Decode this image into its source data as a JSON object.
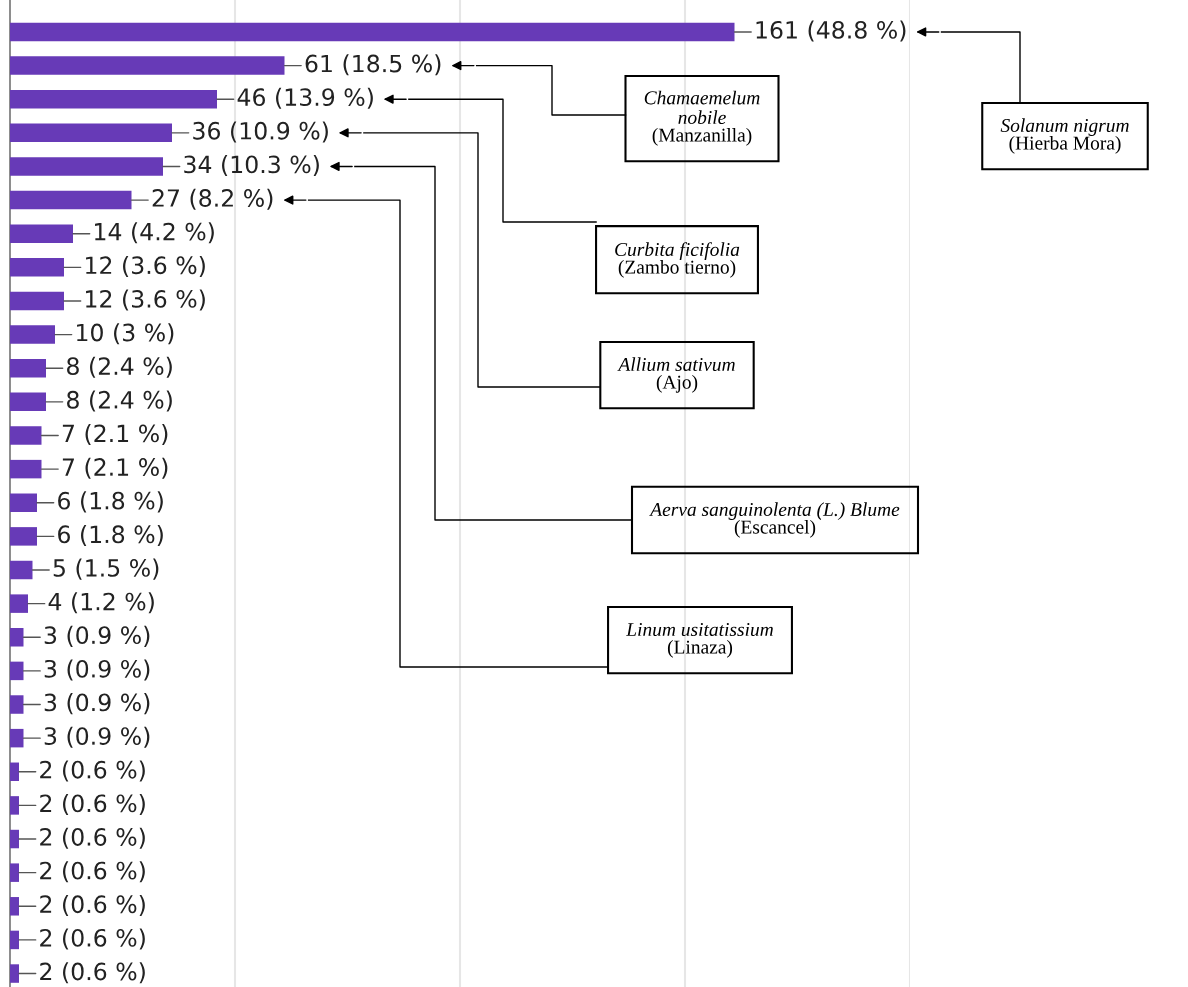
{
  "chart_data": {
    "type": "bar",
    "orientation": "horizontal",
    "categories": [
      null,
      null,
      null,
      null,
      null,
      null,
      null,
      null,
      null,
      null,
      null,
      null,
      null,
      null,
      null,
      null,
      null,
      null,
      null,
      null,
      null,
      null,
      null,
      null,
      null,
      null,
      null,
      null,
      null
    ],
    "values": [
      161,
      61,
      46,
      36,
      34,
      27,
      14,
      12,
      12,
      10,
      8,
      8,
      7,
      7,
      6,
      6,
      5,
      4,
      3,
      3,
      3,
      3,
      2,
      2,
      2,
      2,
      2,
      2,
      2
    ],
    "value_labels": [
      "161 (48.8 %)",
      "61 (18.5 %)",
      "46 (13.9 %)",
      "36 (10.9 %)",
      "34 (10.3 %)",
      "27 (8.2 %)",
      "14 (4.2 %)",
      "12 (3.6 %)",
      "12 (3.6 %)",
      "10 (3 %)",
      "8 (2.4 %)",
      "8 (2.4 %)",
      "7 (2.1 %)",
      "7 (2.1 %)",
      "6 (1.8 %)",
      "6 (1.8 %)",
      "5 (1.5 %)",
      "4 (1.2 %)",
      "3 (0.9 %)",
      "3 (0.9 %)",
      "3 (0.9 %)",
      "3 (0.9 %)",
      "2 (0.6 %)",
      "2 (0.6 %)",
      "2 (0.6 %)",
      "2 (0.6 %)",
      "2 (0.6 %)",
      "2 (0.6 %)",
      "2 (0.6 %)"
    ],
    "color": "#673ab7",
    "xlim": [
      0,
      200
    ],
    "xticks": [
      {
        "value": 50,
        "label": null
      },
      {
        "value": 100,
        "label": null
      },
      {
        "value": 150,
        "label": null
      },
      {
        "value": 200,
        "label": null
      }
    ],
    "grid": "x",
    "annotations": [
      "Solanum nigrum\n(Hierba Mora)",
      "Chamaemelum\nnobile\n(Manzanilla)",
      "Curbita ficifolia\n(Zambo tierno)",
      "Allium sativum\n(Ajo)",
      "Aerva sanguinolenta (L.) Blume\n(Escancel)",
      "Linum usitatissium\n(Linaza)"
    ]
  }
}
